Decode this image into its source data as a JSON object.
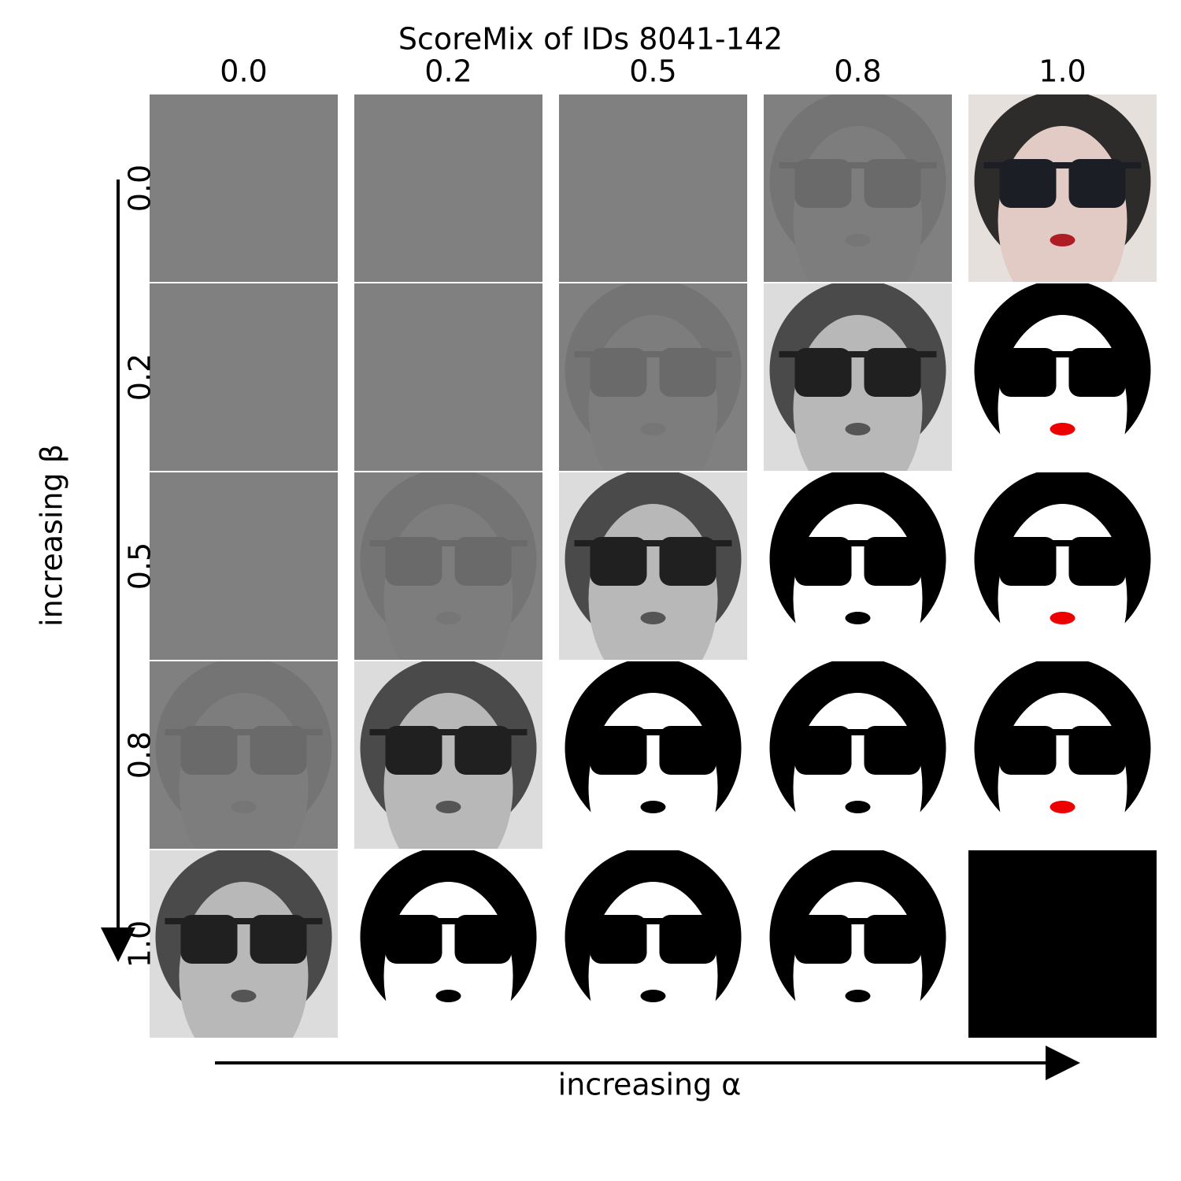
{
  "title": "ScoreMix of IDs 8041-142",
  "columns": [
    "0.0",
    "0.2",
    "0.5",
    "0.8",
    "1.0"
  ],
  "rows": [
    "0.0",
    "0.2",
    "0.5",
    "0.8",
    "1.0"
  ],
  "x_axis_label": "increasing α",
  "y_axis_label": "increasing β"
}
